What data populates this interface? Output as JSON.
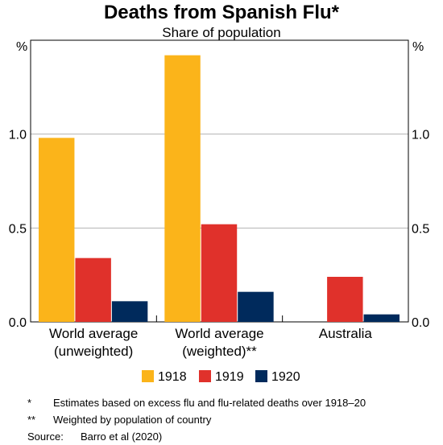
{
  "title": "Deaths from Spanish Flu*",
  "subtitle": "Share of population",
  "chart_data": {
    "type": "bar",
    "title": "Deaths from Spanish Flu*",
    "subtitle": "Share of population",
    "unit_left": "%",
    "unit_right": "%",
    "categories": [
      [
        "World average",
        "(unweighted)"
      ],
      [
        "World average",
        "(weighted)**"
      ],
      [
        "Australia"
      ]
    ],
    "series": [
      {
        "name": "1918",
        "color": "#fbb41a",
        "values": [
          0.98,
          1.42,
          null
        ]
      },
      {
        "name": "1919",
        "color": "#e0312b",
        "values": [
          0.34,
          0.52,
          0.24
        ]
      },
      {
        "name": "1920",
        "color": "#002a5c",
        "values": [
          0.11,
          0.16,
          0.04
        ]
      }
    ],
    "ylim": [
      0,
      1.5
    ],
    "yticks": [
      0.0,
      0.5,
      1.0
    ],
    "ytick_labels": [
      "0.0",
      "0.5",
      "1.0"
    ],
    "grid": true,
    "legend_position": "bottom"
  },
  "notes": [
    {
      "mark": "*",
      "text": "Estimates based on excess flu and flu-related deaths over 1918–20"
    },
    {
      "mark": "**",
      "text": "Weighted by population of country"
    }
  ],
  "source": {
    "label": "Source:",
    "text": "Barro et al (2020)"
  }
}
